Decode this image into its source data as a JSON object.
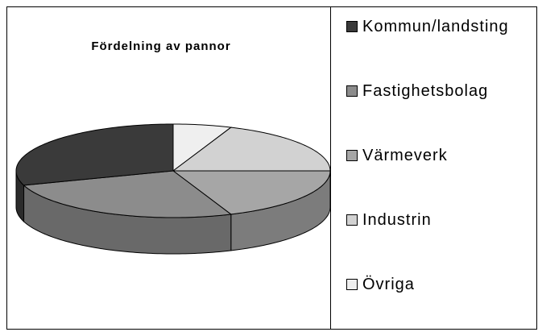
{
  "chart_data": {
    "type": "pie3d",
    "title": "Fördelning av pannor",
    "categories": [
      "Kommun/landsting",
      "Fastighetsbolag",
      "Värmeverk",
      "Industrin",
      "Övriga"
    ],
    "values": [
      30,
      26,
      19,
      19,
      6
    ],
    "colors": [
      "#3a3a3a",
      "#8c8c8c",
      "#a6a6a6",
      "#d2d2d2",
      "#efefef"
    ]
  }
}
